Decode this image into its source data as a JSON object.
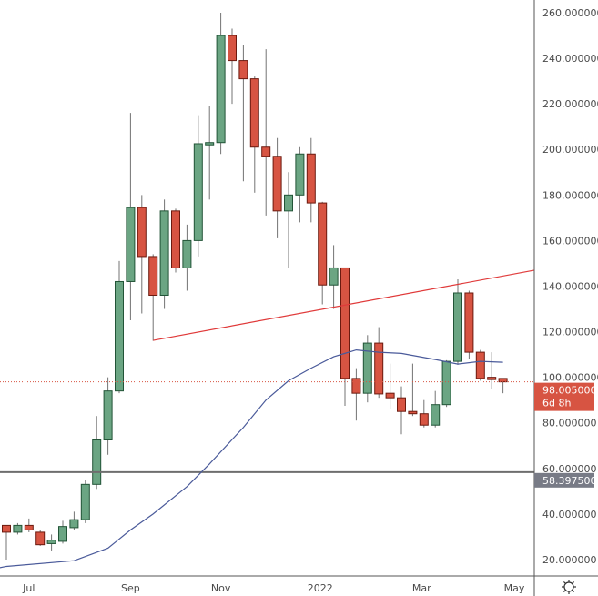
{
  "chart_data": {
    "type": "candlestick",
    "title": "",
    "xlabel": "",
    "ylabel": "",
    "ylim": [
      20,
      260
    ],
    "grid": false,
    "y_ticks": [
      "260.000000",
      "240.000000",
      "220.000000",
      "200.000000",
      "180.000000",
      "160.000000",
      "140.000000",
      "120.000000",
      "100.000000",
      "80.000000",
      "60.000000",
      "40.000000",
      "20.000000"
    ],
    "y_tick_values": [
      260,
      240,
      220,
      200,
      180,
      160,
      140,
      120,
      100,
      80,
      60,
      40,
      20
    ],
    "x_ticks": [
      {
        "label": "Jul",
        "index": 2
      },
      {
        "label": "Sep",
        "index": 11
      },
      {
        "label": "Nov",
        "index": 19
      },
      {
        "label": "2022",
        "index": 27.8
      },
      {
        "label": "Mar",
        "index": 36.8
      },
      {
        "label": "May",
        "index": 45
      }
    ],
    "candles": [
      [
        35,
        35,
        20,
        32
      ],
      [
        32,
        36,
        31,
        35
      ],
      [
        35,
        38,
        32,
        33
      ],
      [
        32,
        33,
        26,
        26.5
      ],
      [
        27,
        31,
        24,
        28.5
      ],
      [
        28,
        37,
        27,
        34.5
      ],
      [
        34,
        41,
        33,
        37.5
      ],
      [
        37.5,
        55,
        36,
        53
      ],
      [
        53,
        83,
        51,
        72.5
      ],
      [
        72.5,
        100,
        66,
        94
      ],
      [
        94,
        151,
        93,
        142
      ],
      [
        142,
        216,
        125,
        174.5
      ],
      [
        174.5,
        180,
        128,
        153
      ],
      [
        153,
        154,
        116,
        136
      ],
      [
        136,
        178,
        130,
        173
      ],
      [
        173,
        174,
        146,
        148
      ],
      [
        148,
        167,
        138,
        160
      ],
      [
        160,
        215,
        153,
        202.5
      ],
      [
        202,
        219,
        178,
        203
      ],
      [
        203,
        260,
        198,
        250
      ],
      [
        250,
        253,
        220,
        239
      ],
      [
        239,
        246,
        186,
        231
      ],
      [
        231,
        232,
        181,
        201
      ],
      [
        201,
        244,
        171,
        197
      ],
      [
        197,
        205,
        161,
        173
      ],
      [
        173,
        190,
        148,
        180
      ],
      [
        180,
        201,
        168,
        198
      ],
      [
        198,
        205,
        168,
        176.5
      ],
      [
        176.5,
        177,
        132,
        140.5
      ],
      [
        140.5,
        158,
        130,
        148
      ],
      [
        148,
        148,
        87.5,
        99.5
      ],
      [
        99.5,
        104,
        81,
        93
      ],
      [
        93,
        118.5,
        89,
        115
      ],
      [
        115,
        122,
        91,
        92.7
      ],
      [
        93,
        106,
        86,
        91
      ],
      [
        91,
        96,
        75,
        85
      ],
      [
        85,
        106,
        83,
        84
      ],
      [
        84,
        90,
        78,
        79
      ],
      [
        79,
        94,
        78,
        88
      ],
      [
        88,
        107.5,
        87,
        107
      ],
      [
        107,
        143,
        105.5,
        137
      ],
      [
        137,
        138,
        108,
        111
      ],
      [
        111,
        112,
        98.5,
        99.5
      ],
      [
        100,
        111,
        95,
        99
      ],
      [
        99.5,
        99.5,
        93,
        98
      ]
    ],
    "candle_fields": [
      "open",
      "high",
      "low",
      "close"
    ],
    "moving_average": [
      [
        -0.6,
        16.4
      ],
      [
        0,
        17
      ],
      [
        6,
        19.5
      ],
      [
        9,
        25
      ],
      [
        11,
        33
      ],
      [
        13,
        40
      ],
      [
        16,
        52
      ],
      [
        18,
        62
      ],
      [
        21,
        78
      ],
      [
        23,
        90
      ],
      [
        25,
        98.5
      ],
      [
        27,
        104
      ],
      [
        29,
        109
      ],
      [
        31,
        112
      ],
      [
        33,
        111
      ],
      [
        35,
        110.5
      ],
      [
        38,
        107.8
      ],
      [
        40,
        105.8
      ],
      [
        42,
        107
      ],
      [
        44,
        106.6
      ]
    ],
    "trendline": [
      [
        13,
        116.2
      ],
      [
        46.8,
        147
      ]
    ],
    "horizontal_line": {
      "value": 58.3975,
      "label": "58.397500"
    },
    "last_price": {
      "value": 98.005,
      "label": "98.005000",
      "countdown": "6d 8h"
    },
    "colors": {
      "up": "#6ba583",
      "up_border": "#225437",
      "down": "#d75442",
      "down_border": "#6b1a0f",
      "wick": "#737373",
      "ma": "#4a5a9a",
      "trendline": "#e03a3a",
      "hline": "#6e6e6e",
      "price_label": "#d75442",
      "hline_label": "#787b86"
    }
  },
  "settings_icon": "gear-icon"
}
